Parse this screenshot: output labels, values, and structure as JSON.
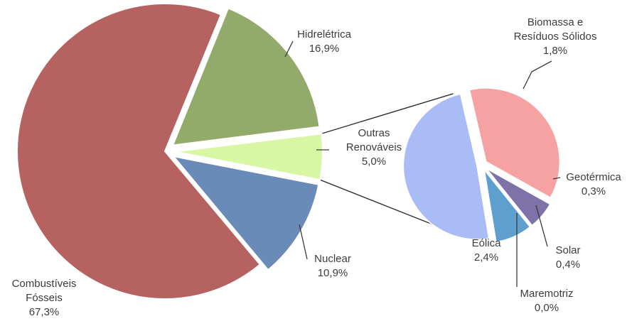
{
  "chart_data": {
    "type": "pie",
    "title": "",
    "unit": "%",
    "main": {
      "slices": [
        {
          "id": "combustiveis",
          "label_lines": [
            "Combustíveis",
            "Fósseis"
          ],
          "value": 67.3,
          "value_text": "67,3%",
          "color": "#b66260"
        },
        {
          "id": "hidreletrica",
          "label_lines": [
            "Hidrelétrica"
          ],
          "value": 16.9,
          "value_text": "16,9%",
          "color": "#92aa6a"
        },
        {
          "id": "outras",
          "label_lines": [
            "Outras",
            "Renováveis"
          ],
          "value": 5.0,
          "value_text": "5,0%",
          "color": "#d8f7a4"
        },
        {
          "id": "nuclear",
          "label_lines": [
            "Nuclear"
          ],
          "value": 10.9,
          "value_text": "10,9%",
          "color": "#6a8ab8"
        }
      ]
    },
    "breakdown": {
      "of": "outras",
      "slices": [
        {
          "id": "biomassa",
          "label_lines": [
            "Biomassa e",
            "Resíduos Sólidos"
          ],
          "value": 1.8,
          "value_text": "1,8%",
          "color": "#f6a2a2"
        },
        {
          "id": "geotermica",
          "label_lines": [
            "Geotérmica"
          ],
          "value": 0.3,
          "value_text": "0,3%",
          "color": "#7f72a8"
        },
        {
          "id": "solar",
          "label_lines": [
            "Solar"
          ],
          "value": 0.4,
          "value_text": "0,4%",
          "color": "#5f9fcd"
        },
        {
          "id": "maremotriz",
          "label_lines": [
            "Maremotriz"
          ],
          "value": 0.0,
          "value_text": "0,0%",
          "color": "#4a7fa8"
        },
        {
          "id": "eolica",
          "label_lines": [
            "Eólica"
          ],
          "value": 2.4,
          "value_text": "2,4%",
          "color": "#a9bcf5"
        }
      ]
    }
  }
}
